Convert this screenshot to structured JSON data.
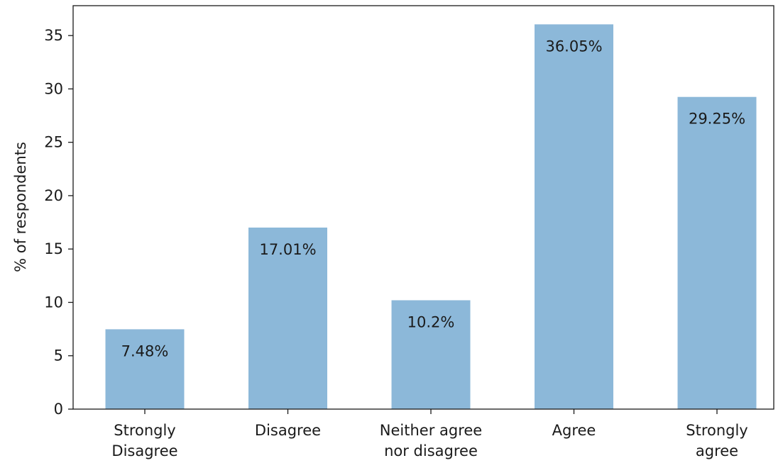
{
  "chart_data": {
    "type": "bar",
    "categories": [
      [
        "Strongly",
        "Disagree"
      ],
      [
        "Disagree"
      ],
      [
        "Neither agree",
        "nor disagree"
      ],
      [
        "Agree"
      ],
      [
        "Strongly",
        "agree"
      ]
    ],
    "values": [
      7.48,
      17.01,
      10.2,
      36.05,
      29.25
    ],
    "data_labels": [
      "7.48%",
      "17.01%",
      "10.2%",
      "36.05%",
      "29.25%"
    ],
    "title": "",
    "xlabel": "",
    "ylabel": "% of respondents",
    "ylim": [
      0,
      37.8
    ],
    "yticks": [
      0,
      5,
      10,
      15,
      20,
      25,
      30,
      35
    ],
    "grid": false,
    "legend": "none",
    "bar_color": "#8cb8d9"
  }
}
